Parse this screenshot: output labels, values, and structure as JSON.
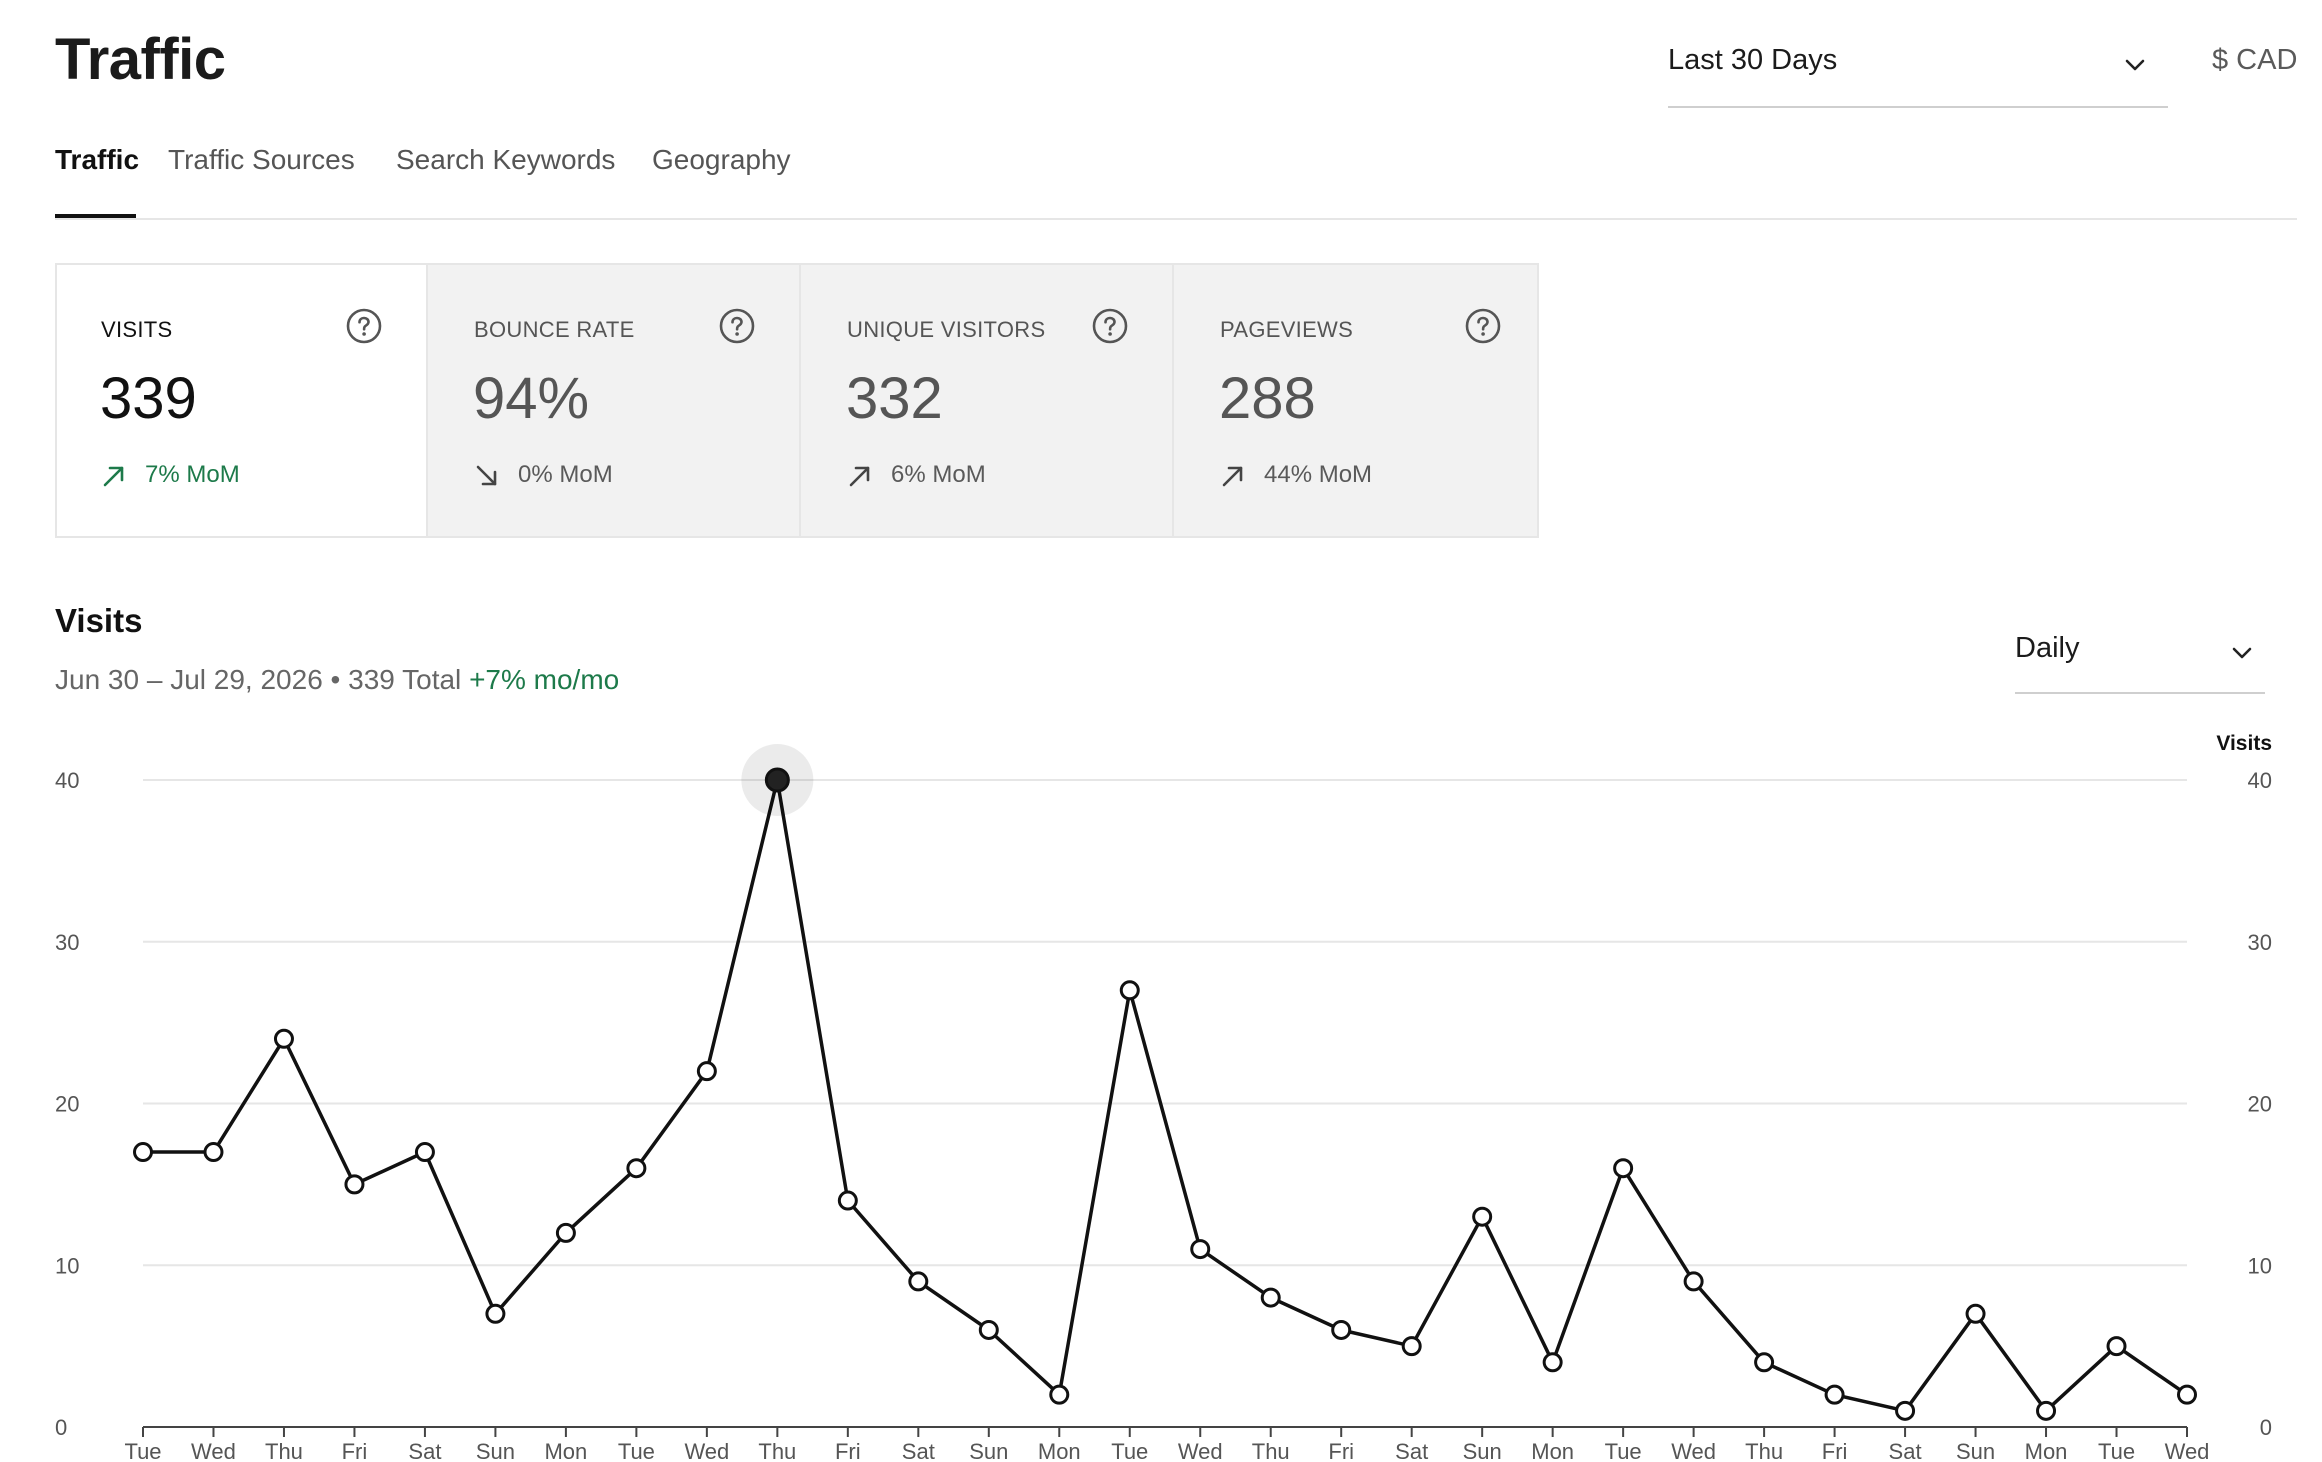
{
  "header": {
    "title": "Traffic",
    "range_label": "Last 30 Days",
    "currency_label": "$ CAD"
  },
  "tabs": [
    {
      "label": "Traffic",
      "active": true
    },
    {
      "label": "Traffic Sources",
      "active": false
    },
    {
      "label": "Search Keywords",
      "active": false
    },
    {
      "label": "Geography",
      "active": false
    }
  ],
  "metrics": [
    {
      "name": "VISITS",
      "value": "339",
      "trend": "7% MoM",
      "direction": "up",
      "active": true
    },
    {
      "name": "BOUNCE RATE",
      "value": "94%",
      "trend": "0% MoM",
      "direction": "down",
      "active": false
    },
    {
      "name": "UNIQUE VISITORS",
      "value": "332",
      "trend": "6% MoM",
      "direction": "up",
      "active": false
    },
    {
      "name": "PAGEVIEWS",
      "value": "288",
      "trend": "44% MoM",
      "direction": "up",
      "active": false
    }
  ],
  "section": {
    "title": "Visits",
    "date_range": "Jun 30 – Jul 29, 2026",
    "separator": "•",
    "total": "339 Total",
    "change": "+7% mo/mo",
    "interval_label": "Daily"
  },
  "colors": {
    "positive": "#1d7a4a",
    "line": "#111111",
    "grid": "#e6e6e6",
    "card_inactive_bg": "#f2f2f2"
  },
  "chart_data": {
    "type": "line",
    "title": "",
    "xlabel": "",
    "ylabel": "",
    "right_axis_label": "Visits",
    "ylim": [
      0,
      40
    ],
    "yticks": [
      0,
      10,
      20,
      30,
      40
    ],
    "grid": true,
    "highlighted_index": 9,
    "x": [
      "Tue",
      "Wed",
      "Thu",
      "Fri",
      "Sat",
      "Sun",
      "Mon",
      "Tue",
      "Wed",
      "Thu",
      "Fri",
      "Sat",
      "Sun",
      "Mon",
      "Tue",
      "Wed",
      "Thu",
      "Fri",
      "Sat",
      "Sun",
      "Mon",
      "Tue",
      "Wed",
      "Thu",
      "Fri",
      "Sat",
      "Sun",
      "Mon",
      "Tue",
      "Wed"
    ],
    "series": [
      {
        "values": [
          17,
          17,
          24,
          15,
          17,
          7,
          12,
          16,
          22,
          40,
          14,
          9,
          6,
          2,
          27,
          11,
          8,
          6,
          5,
          13,
          4,
          16,
          9,
          4,
          2,
          1,
          7,
          1,
          5,
          2
        ]
      }
    ]
  }
}
